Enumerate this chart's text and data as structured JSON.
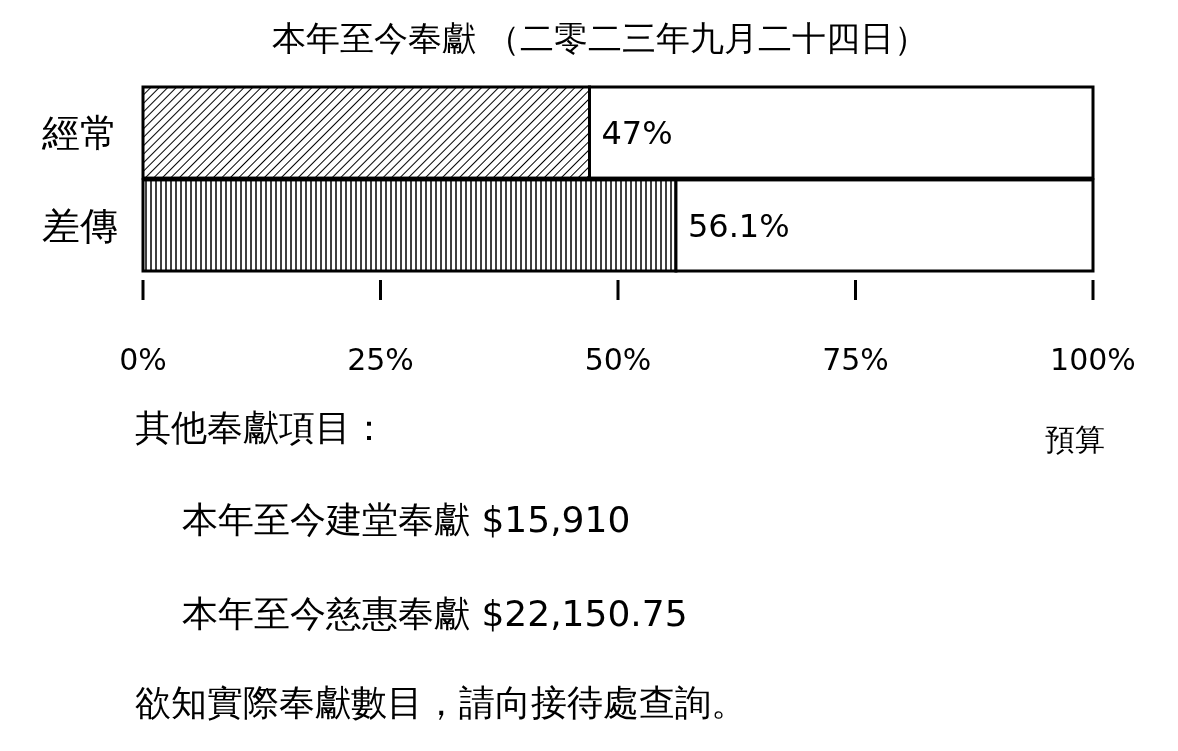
{
  "chart_data": {
    "type": "bar",
    "orientation": "horizontal",
    "stacked": true,
    "title": "本年至今奉獻 （二零二三年九月二十四日）",
    "categories": [
      "經常",
      "差傳"
    ],
    "series": [
      {
        "color": "#000000",
        "values": [
          47,
          56.1
        ],
        "value_labels": [
          "47%",
          "56.1%"
        ]
      },
      {
        "color": "#ffffff",
        "values": [
          53,
          43.9
        ]
      }
    ],
    "xlim": [
      0,
      100
    ],
    "xticks": [
      {
        "value": 0,
        "label": "0%"
      },
      {
        "value": 25,
        "label": "25%"
      },
      {
        "value": 50,
        "label": "50%"
      },
      {
        "value": 75,
        "label": "75%"
      },
      {
        "value": 100,
        "label": "100%"
      }
    ],
    "annotations": [
      "預算",
      "其他奉獻項目：",
      "本年至今建堂奉獻 $15,910",
      "本年至今慈惠奉獻 $22,150.75",
      "欲知實際奉獻數目，請向接待處查詢。"
    ]
  }
}
